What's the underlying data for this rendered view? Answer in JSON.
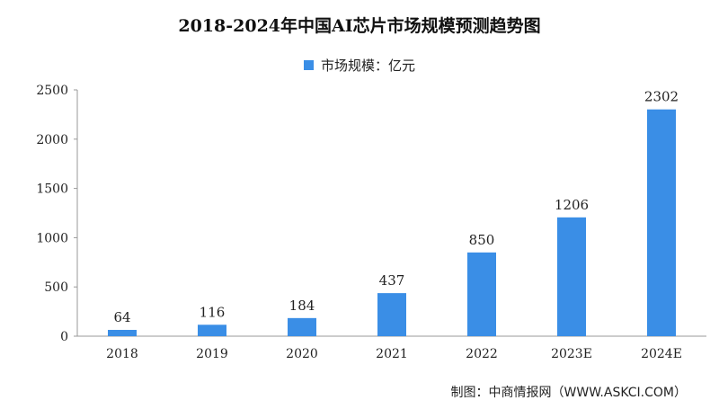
{
  "chart_data": {
    "type": "bar",
    "title": "2018-2024年中国AI芯片市场规模预测趋势图",
    "categories": [
      "2018",
      "2019",
      "2020",
      "2021",
      "2022",
      "2023E",
      "2024E"
    ],
    "series": [
      {
        "name": "市场规模：亿元",
        "values": [
          64,
          116,
          184,
          437,
          850,
          1206,
          2302
        ]
      }
    ],
    "ylim": [
      0,
      2500
    ],
    "yticks": [
      0,
      500,
      1000,
      1500,
      2000,
      2500
    ],
    "grid": false,
    "legend_position": "top-center",
    "bar_color": "#3a8ee6",
    "source": "制图：中商情报网（WWW.ASKCI.COM）"
  }
}
